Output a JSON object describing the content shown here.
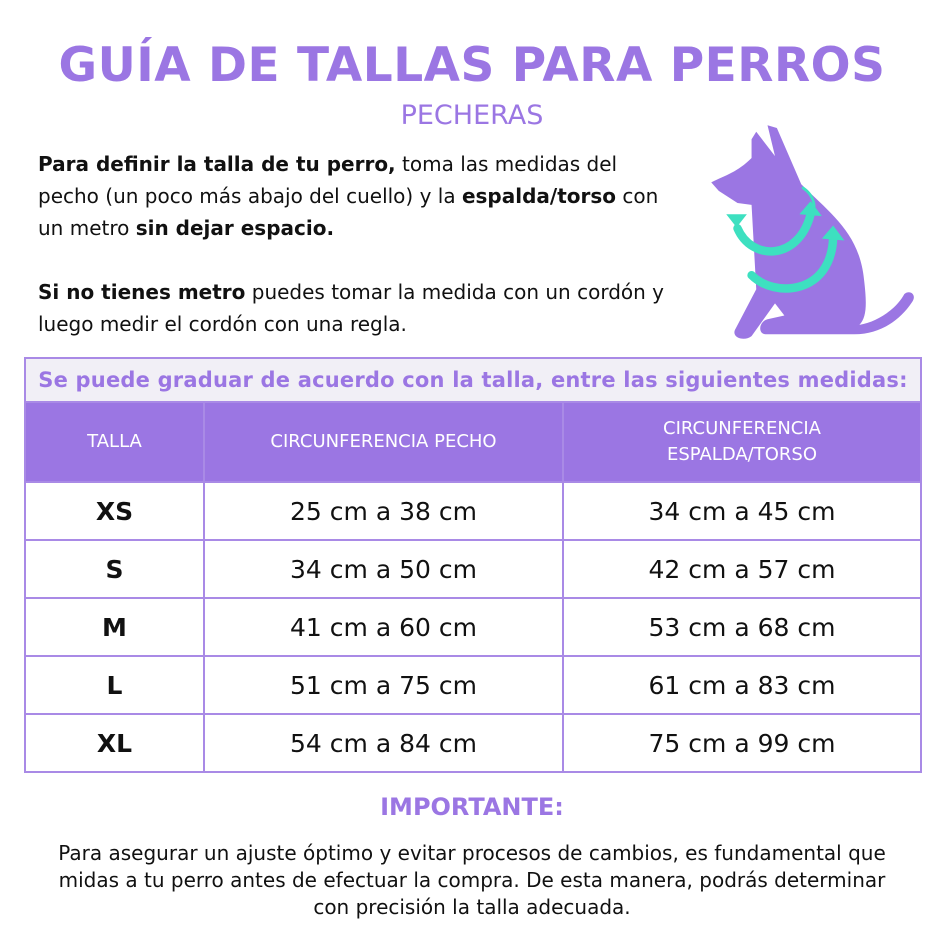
{
  "header": {
    "title": "GUÍA DE TALLAS PARA PERROS",
    "subtitle": "PECHERAS"
  },
  "intro": {
    "p1": [
      {
        "text": "Para definir la talla de  tu perro,",
        "bold": true
      },
      {
        "text": " toma las medidas del pecho (un poco más abajo del cuello) y la ",
        "bold": false
      },
      {
        "text": "espalda/torso",
        "bold": true
      },
      {
        "text": " con un metro ",
        "bold": false
      },
      {
        "text": "sin dejar espacio.",
        "bold": true
      }
    ],
    "p2": [
      {
        "text": "Si no tienes metro",
        "bold": true
      },
      {
        "text": " puedes tomar la medida con un cordón y luego medir el cordón con una regla.",
        "bold": false
      }
    ]
  },
  "illustration": {
    "icon": "dog-harness-measure-icon",
    "colors": {
      "body": "#9b76e3",
      "arrows": "#3de0c0"
    }
  },
  "table": {
    "caption": "Se puede graduar de acuerdo con la talla, entre las siguientes medidas:",
    "headers": [
      "TALLA",
      "CIRCUNFERENCIA PECHO",
      "CIRCUNFERENCIA ESPALDA/TORSO"
    ],
    "rows": [
      [
        "XS",
        "25 cm a 38 cm",
        "34 cm a 45 cm"
      ],
      [
        "S",
        "34 cm a 50 cm",
        "42 cm a 57 cm"
      ],
      [
        "M",
        "41 cm a 60 cm",
        "53 cm a 68 cm"
      ],
      [
        "L",
        "51 cm a 75 cm",
        "61 cm a 83 cm"
      ],
      [
        "XL",
        "54 cm a 84 cm",
        "75 cm a 99 cm"
      ]
    ]
  },
  "important": {
    "title": "IMPORTANTE:",
    "text": "Para asegurar un ajuste óptimo y evitar procesos de cambios, es fundamental que midas a tu perro antes de efectuar la compra. De esta manera, podrás determinar con precisión la talla adecuada."
  },
  "colors": {
    "accent": "#9b76e3",
    "caption_bg": "#f1eff6",
    "teal": "#3de0c0"
  }
}
